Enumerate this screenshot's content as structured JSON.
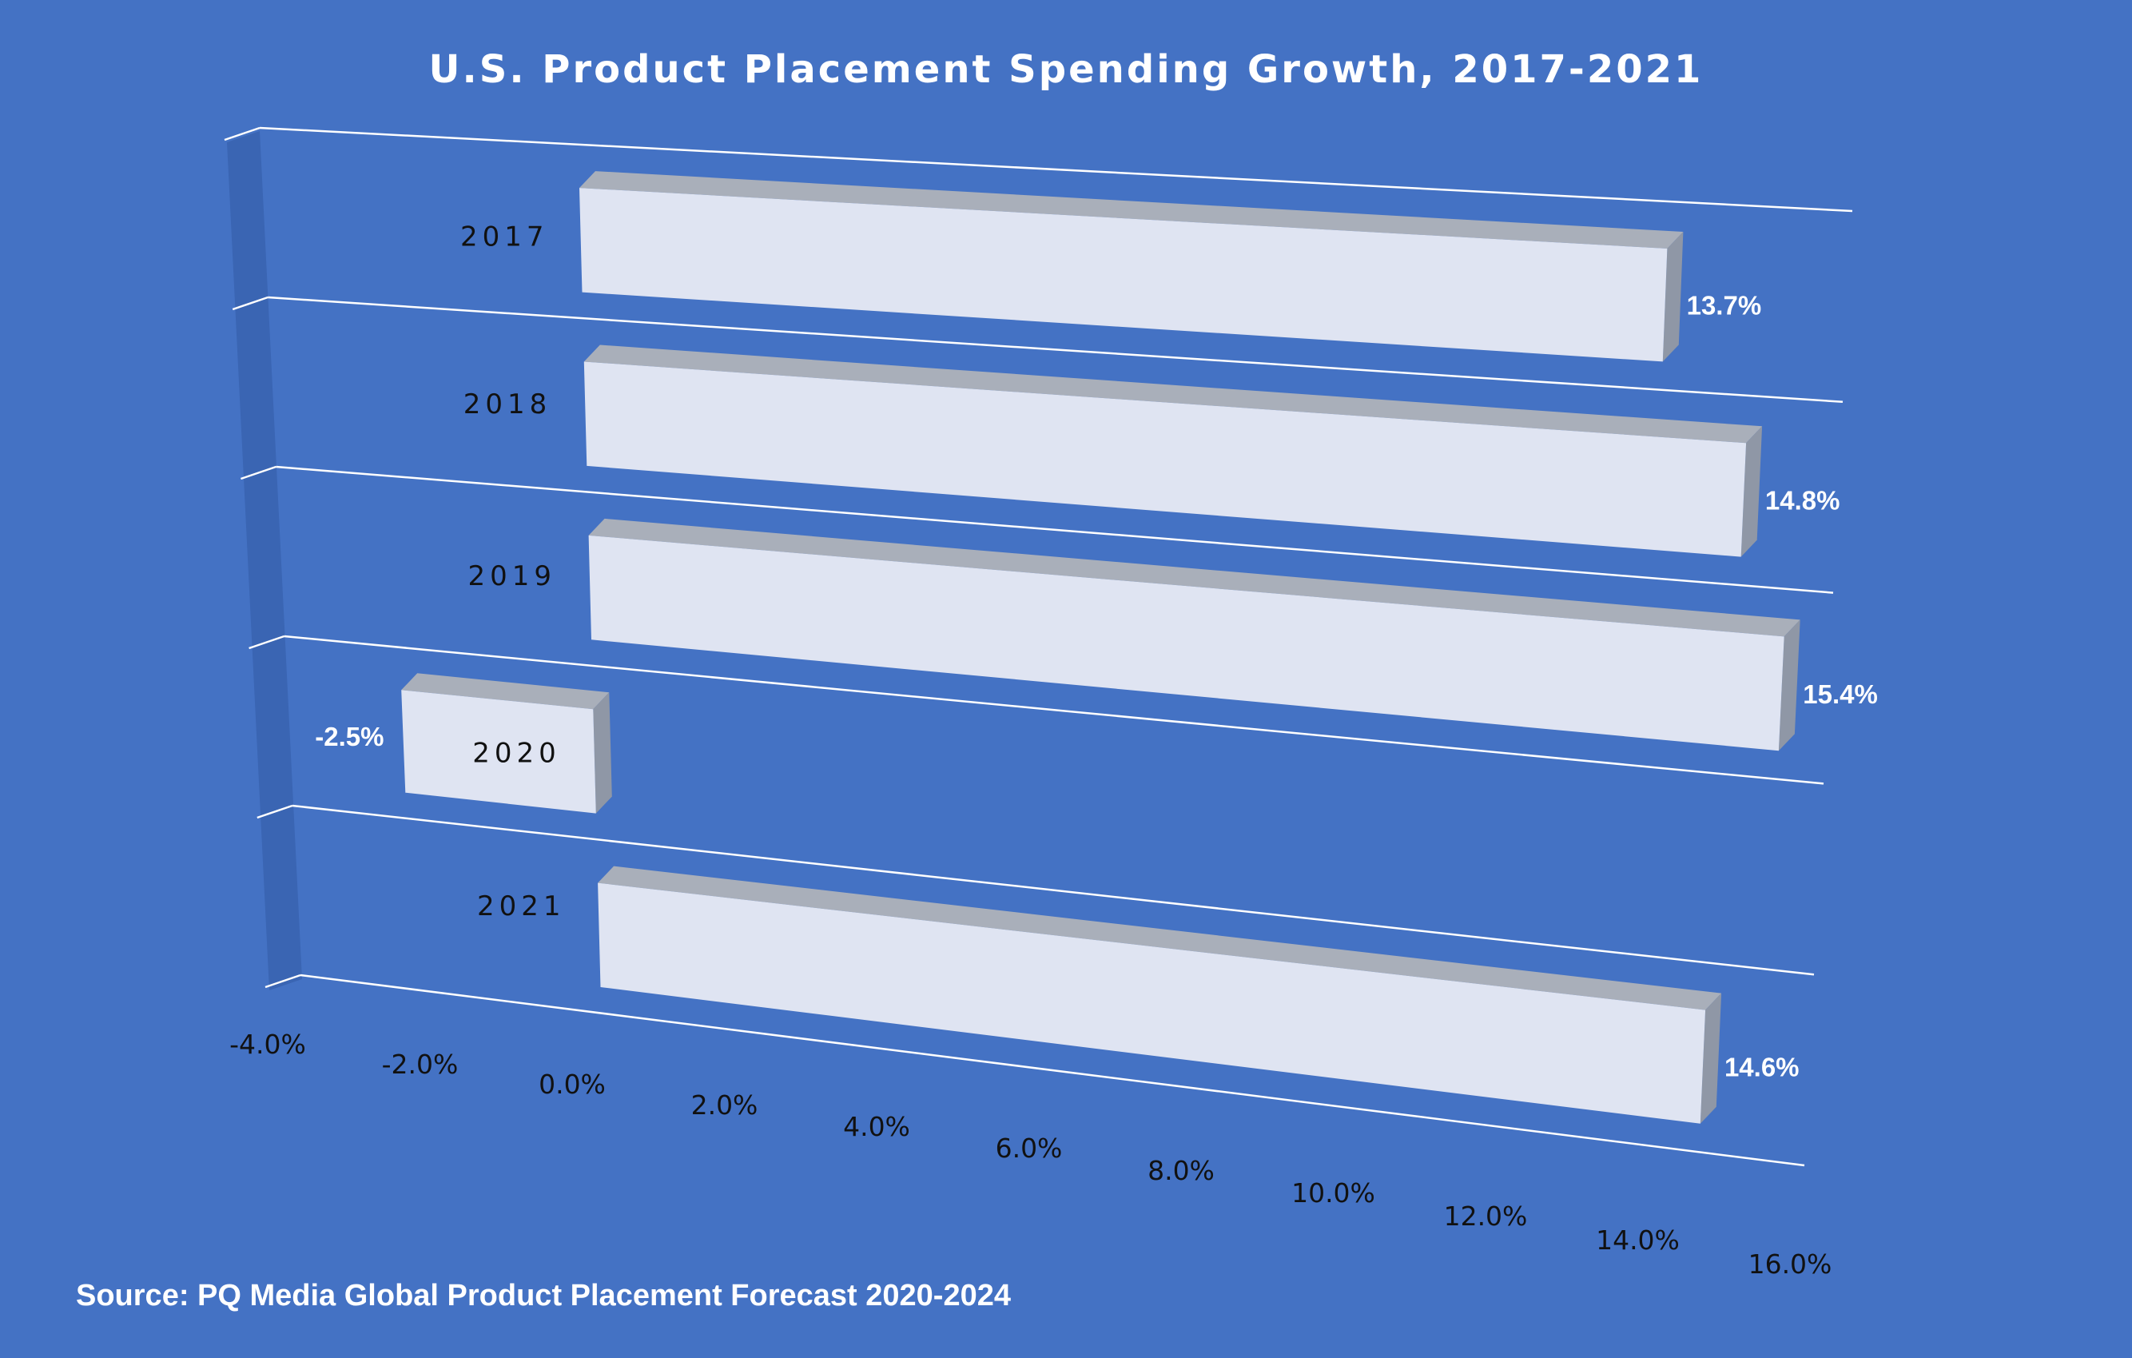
{
  "chart_data": {
    "type": "bar",
    "orientation": "horizontal",
    "style": "3d",
    "title": "U.S. Product Placement Spending Growth, 2017-2021",
    "categories": [
      "2017",
      "2018",
      "2019",
      "2020",
      "2021"
    ],
    "values": [
      13.7,
      14.8,
      15.4,
      -2.5,
      14.6
    ],
    "data_labels": [
      "13.7%",
      "14.8%",
      "15.4%",
      "-2.5%",
      "14.6%"
    ],
    "xlim": [
      -4.0,
      16.0
    ],
    "x_ticks": [
      "-4.0%",
      "-2.0%",
      "0.0%",
      "2.0%",
      "4.0%",
      "6.0%",
      "8.0%",
      "10.0%",
      "12.0%",
      "14.0%",
      "16.0%"
    ],
    "xlabel": "",
    "ylabel": "",
    "grid": true,
    "colors": {
      "background": "#4472C4",
      "bar_front": "#DFE4F2",
      "bar_top": "#A9AFBA",
      "bar_side": "#8F97A6",
      "wall": "#3A65B3",
      "gridline": "#FFFFFF"
    }
  },
  "source": "Source: PQ Media Global Product Placement Forecast 2020-2024"
}
